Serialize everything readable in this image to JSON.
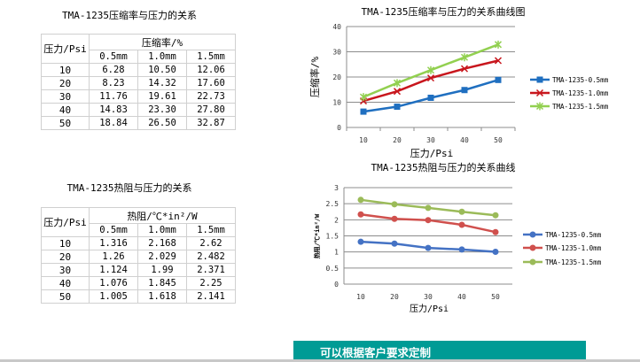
{
  "compression_table": {
    "title": "TMA-1235压缩率与压力的关系",
    "row_header": "压力/Psi",
    "group_header": "压缩率/%",
    "columns": [
      "0.5mm",
      "1.0mm",
      "1.5mm"
    ],
    "rows": [
      [
        "10",
        "6.28",
        "10.50",
        "12.06"
      ],
      [
        "20",
        "8.23",
        "14.32",
        "17.60"
      ],
      [
        "30",
        "11.76",
        "19.61",
        "22.73"
      ],
      [
        "40",
        "14.83",
        "23.30",
        "27.80"
      ],
      [
        "50",
        "18.84",
        "26.50",
        "32.87"
      ]
    ]
  },
  "thermal_table": {
    "title": "TMA-1235热阻与压力的关系",
    "row_header": "压力/Psi",
    "group_header": "热阻/℃*in²/W",
    "columns": [
      "0.5mm",
      "1.0mm",
      "1.5mm"
    ],
    "rows": [
      [
        "10",
        "1.316",
        "2.168",
        "2.62"
      ],
      [
        "20",
        "1.26",
        "2.029",
        "2.482"
      ],
      [
        "30",
        "1.124",
        "1.99",
        "2.371"
      ],
      [
        "40",
        "1.076",
        "1.845",
        "2.25"
      ],
      [
        "50",
        "1.005",
        "1.618",
        "2.141"
      ]
    ]
  },
  "chart_data": [
    {
      "type": "line",
      "title": "TMA-1235压缩率与压力的关系曲线图",
      "xlabel": "压力/Psi",
      "ylabel": "压缩率/%",
      "categories": [
        "10",
        "20",
        "30",
        "40",
        "50"
      ],
      "ylim": [
        0,
        40
      ],
      "yticks": [
        "0",
        "10",
        "20",
        "30",
        "40"
      ],
      "grid": true,
      "legend": "right",
      "series": [
        {
          "name": "TMA-1235-0.5mm",
          "values": [
            6.28,
            8.23,
            11.76,
            14.83,
            18.84
          ],
          "color": "#1f6fc0",
          "marker": "square"
        },
        {
          "name": "TMA-1235-1.0mm",
          "values": [
            10.5,
            14.32,
            19.61,
            23.3,
            26.5
          ],
          "color": "#c8161d",
          "marker": "x"
        },
        {
          "name": "TMA-1235-1.5mm",
          "values": [
            12.06,
            17.6,
            22.73,
            27.8,
            32.87
          ],
          "color": "#92d050",
          "marker": "star"
        }
      ]
    },
    {
      "type": "line",
      "title": "TMA-1235热阻与压力的关系曲线",
      "xlabel": "压力/Psi",
      "ylabel": "热阻/℃*in²/W",
      "categories": [
        "10",
        "20",
        "30",
        "40",
        "50"
      ],
      "ylim": [
        0,
        3
      ],
      "yticks": [
        "0",
        "0.5",
        "1",
        "1.5",
        "2",
        "2.5",
        "3"
      ],
      "grid": true,
      "legend": "right",
      "series": [
        {
          "name": "TMA-1235-0.5mm",
          "values": [
            1.316,
            1.26,
            1.124,
            1.076,
            1.005
          ],
          "color": "#4472c4",
          "marker": "circle"
        },
        {
          "name": "TMA-1235-1.0mm",
          "values": [
            2.168,
            2.029,
            1.99,
            1.845,
            1.618
          ],
          "color": "#d0504d",
          "marker": "circle"
        },
        {
          "name": "TMA-1235-1.5mm",
          "values": [
            2.62,
            2.482,
            2.371,
            2.25,
            2.141
          ],
          "color": "#9bbb59",
          "marker": "circle"
        }
      ]
    }
  ],
  "banner": {
    "text": "可以根据客户要求定制"
  }
}
